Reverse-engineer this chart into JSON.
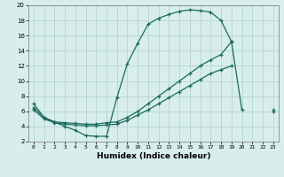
{
  "xlabel": "Humidex (Indice chaleur)",
  "bg_color": "#d8eeed",
  "grid_color": "#aecfcf",
  "line_color": "#1a6b5a",
  "xlim": [
    -0.5,
    23.5
  ],
  "ylim": [
    2,
    20
  ],
  "yticks": [
    2,
    4,
    6,
    8,
    10,
    12,
    14,
    16,
    18,
    20
  ],
  "xticks": [
    0,
    1,
    2,
    3,
    4,
    5,
    6,
    7,
    8,
    9,
    10,
    11,
    12,
    13,
    14,
    15,
    16,
    17,
    18,
    19,
    20,
    21,
    22,
    23
  ],
  "series": [
    {
      "x": [
        0,
        1,
        2,
        3,
        4,
        5,
        6,
        7,
        8,
        9,
        10,
        11,
        12,
        13,
        14,
        15,
        16,
        17,
        18,
        19,
        20,
        21,
        22,
        23
      ],
      "y": [
        7.0,
        5.2,
        4.6,
        4.0,
        3.5,
        2.8,
        2.7,
        2.7,
        7.8,
        12.3,
        15.0,
        17.5,
        18.3,
        18.8,
        19.2,
        19.4,
        19.3,
        19.1,
        18.0,
        15.2,
        null,
        null,
        null,
        null
      ]
    },
    {
      "x": [
        0,
        1,
        2,
        3,
        4,
        5,
        6,
        7,
        8,
        9,
        10,
        11,
        12,
        13,
        14,
        15,
        16,
        17,
        18,
        19,
        20,
        21,
        22,
        23
      ],
      "y": [
        6.5,
        5.2,
        4.6,
        4.5,
        4.4,
        4.3,
        4.3,
        4.5,
        4.6,
        5.2,
        6.0,
        7.0,
        8.0,
        9.0,
        10.0,
        11.0,
        12.0,
        12.8,
        13.5,
        15.2,
        6.2,
        null,
        null,
        6.2
      ]
    },
    {
      "x": [
        0,
        1,
        2,
        3,
        4,
        5,
        6,
        7,
        8,
        9,
        10,
        11,
        12,
        13,
        14,
        15,
        16,
        17,
        18,
        19,
        20,
        21,
        22,
        23
      ],
      "y": [
        6.2,
        5.0,
        4.5,
        4.3,
        4.2,
        4.1,
        4.1,
        4.2,
        4.3,
        4.8,
        5.5,
        6.2,
        7.0,
        7.8,
        8.6,
        9.4,
        10.2,
        11.0,
        11.5,
        12.0,
        null,
        null,
        null,
        6.0
      ]
    }
  ]
}
